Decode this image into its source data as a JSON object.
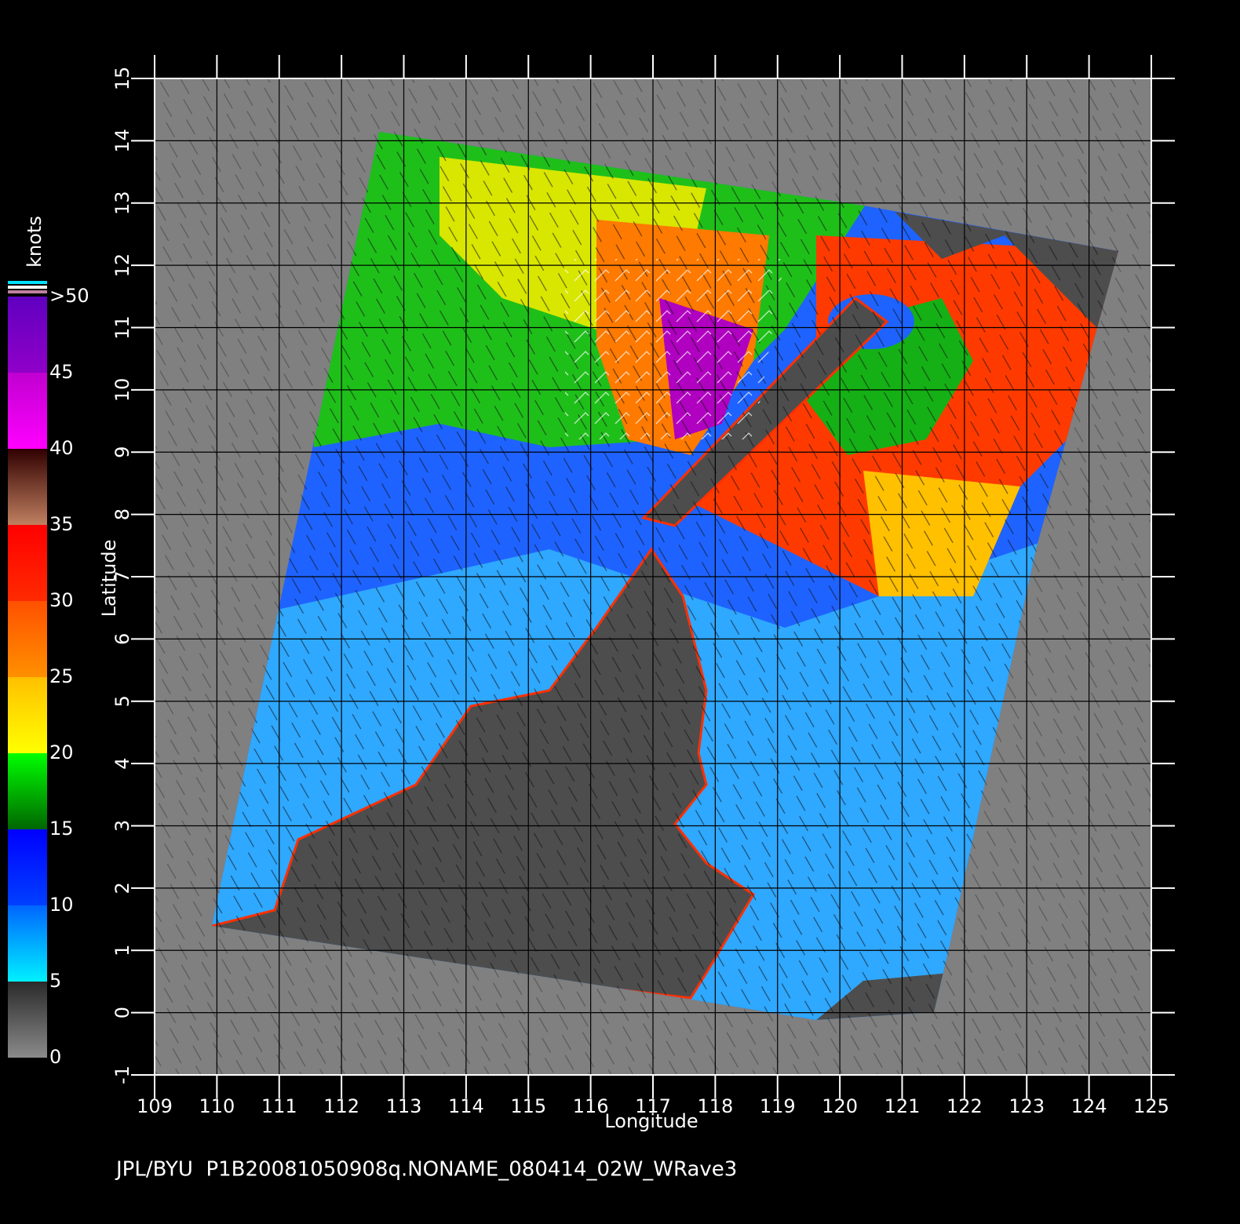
{
  "plot": {
    "x_axis": {
      "label": "Longitude",
      "ticks": [
        109,
        110,
        111,
        112,
        113,
        114,
        115,
        116,
        117,
        118,
        119,
        120,
        121,
        122,
        123,
        124,
        125
      ]
    },
    "y_axis": {
      "label": "Latitude",
      "ticks": [
        -1,
        0,
        1,
        2,
        3,
        4,
        5,
        6,
        7,
        8,
        9,
        10,
        11,
        12,
        13,
        14,
        15
      ]
    }
  },
  "colorbar": {
    "unit": "knots",
    "labels": [
      0,
      5,
      10,
      15,
      20,
      25,
      30,
      35,
      40,
      45,
      ">50"
    ]
  },
  "footer": "JPL/BYU  P1B20081050908q.NONAME_080414_02W_WRave3"
}
